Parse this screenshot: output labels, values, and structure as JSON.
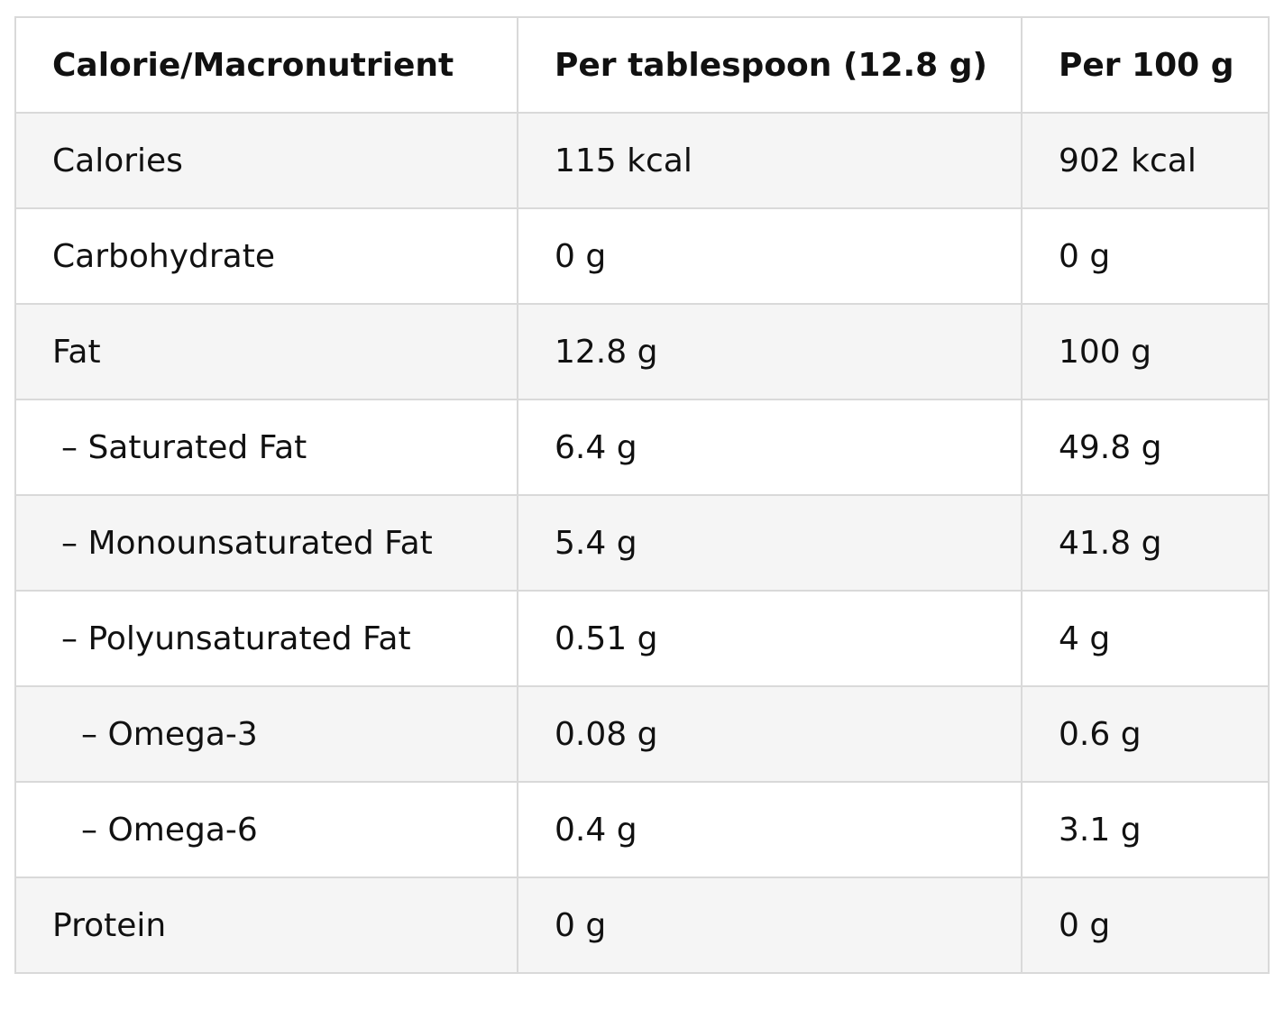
{
  "table": {
    "headers": [
      "Calorie/Macronutrient",
      "Per tablespoon (12.8 g)",
      "Per 100 g"
    ],
    "rows": [
      {
        "name": "Calories",
        "indent": 0,
        "per_tablespoon": "115 kcal",
        "per_100g": "902 kcal"
      },
      {
        "name": "Carbohydrate",
        "indent": 0,
        "per_tablespoon": "0 g",
        "per_100g": "0 g"
      },
      {
        "name": "Fat",
        "indent": 0,
        "per_tablespoon": "12.8 g",
        "per_100g": "100 g"
      },
      {
        "name": "– Saturated Fat",
        "indent": 1,
        "per_tablespoon": "6.4 g",
        "per_100g": "49.8 g"
      },
      {
        "name": "– Monounsaturated Fat",
        "indent": 1,
        "per_tablespoon": "5.4 g",
        "per_100g": "41.8 g"
      },
      {
        "name": "– Polyunsaturated Fat",
        "indent": 1,
        "per_tablespoon": "0.51 g",
        "per_100g": "4 g"
      },
      {
        "name": "– Omega-3",
        "indent": 2,
        "per_tablespoon": "0.08 g",
        "per_100g": "0.6 g"
      },
      {
        "name": "– Omega-6",
        "indent": 2,
        "per_tablespoon": "0.4 g",
        "per_100g": "3.1 g"
      },
      {
        "name": "Protein",
        "indent": 0,
        "per_tablespoon": "0 g",
        "per_100g": "0 g"
      }
    ]
  },
  "colors": {
    "border": "#d9d9d9",
    "stripe": "#f5f5f5",
    "text": "#111111"
  }
}
